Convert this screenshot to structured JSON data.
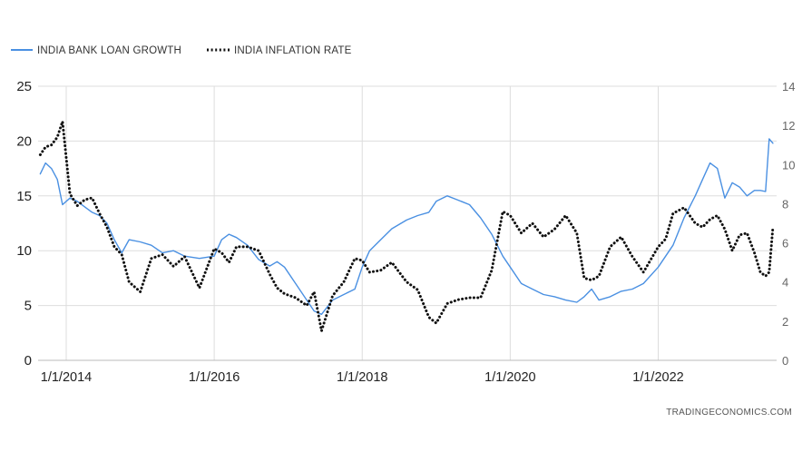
{
  "colors": {
    "loan_growth": "#4a90e2",
    "inflation": "#111111",
    "grid": "#dddddd",
    "baseline": "#bbbbbb"
  },
  "legend": {
    "loan_label": "INDIA BANK LOAN GROWTH",
    "inflation_label": "INDIA INFLATION RATE"
  },
  "credit": "TRADINGECONOMICS.COM",
  "chart_data": {
    "type": "line",
    "title": "",
    "x_tick_labels": [
      "1/1/2014",
      "1/1/2016",
      "1/1/2018",
      "1/1/2020",
      "1/1/2022"
    ],
    "x_ticks": [
      2014.0,
      2016.0,
      2018.0,
      2020.0,
      2022.0
    ],
    "xlim": [
      2013.62,
      2023.6
    ],
    "left_axis": {
      "ylim": [
        0,
        25
      ],
      "ticks": [
        0,
        5,
        10,
        15,
        20,
        25
      ]
    },
    "right_axis": {
      "ylim": [
        0,
        14
      ],
      "ticks": [
        0,
        2,
        4,
        6,
        8,
        10,
        12,
        14
      ]
    },
    "grid": true,
    "legend_position": "top-left",
    "series": [
      {
        "name": "INDIA BANK LOAN GROWTH",
        "axis": "left",
        "style": "solid",
        "color": "#4a90e2",
        "x": [
          2013.65,
          2013.72,
          2013.8,
          2013.88,
          2013.95,
          2014.05,
          2014.15,
          2014.25,
          2014.35,
          2014.45,
          2014.55,
          2014.65,
          2014.75,
          2014.85,
          2015.0,
          2015.15,
          2015.3,
          2015.45,
          2015.6,
          2015.8,
          2016.0,
          2016.1,
          2016.2,
          2016.3,
          2016.45,
          2016.6,
          2016.75,
          2016.85,
          2016.95,
          2017.1,
          2017.25,
          2017.35,
          2017.45,
          2017.6,
          2017.75,
          2017.9,
          2018.0,
          2018.1,
          2018.25,
          2018.4,
          2018.6,
          2018.75,
          2018.9,
          2019.0,
          2019.15,
          2019.3,
          2019.45,
          2019.6,
          2019.75,
          2019.9,
          2020.0,
          2020.15,
          2020.3,
          2020.45,
          2020.6,
          2020.75,
          2020.9,
          2021.0,
          2021.1,
          2021.2,
          2021.35,
          2021.5,
          2021.65,
          2021.8,
          2022.0,
          2022.1,
          2022.2,
          2022.35,
          2022.5,
          2022.6,
          2022.7,
          2022.8,
          2022.9,
          2023.0,
          2023.1,
          2023.2,
          2023.3,
          2023.38,
          2023.45,
          2023.5,
          2023.55
        ],
        "y": [
          17,
          18,
          17.5,
          16.5,
          14.2,
          14.8,
          14.5,
          14,
          13.5,
          13.2,
          12.5,
          11,
          9.8,
          11,
          10.8,
          10.5,
          9.8,
          10,
          9.5,
          9.3,
          9.5,
          11,
          11.5,
          11.2,
          10.5,
          9.2,
          8.6,
          9,
          8.5,
          7,
          5.5,
          4.5,
          4.2,
          5.5,
          6,
          6.5,
          8.5,
          10,
          11,
          12,
          12.8,
          13.2,
          13.5,
          14.5,
          15,
          14.6,
          14.2,
          13,
          11.5,
          9.5,
          8.5,
          7,
          6.5,
          6,
          5.8,
          5.5,
          5.3,
          5.8,
          6.5,
          5.5,
          5.8,
          6.3,
          6.5,
          7,
          8.5,
          9.5,
          10.5,
          13,
          15,
          16.5,
          18,
          17.5,
          14.8,
          16.2,
          15.8,
          15,
          15.5,
          15.5,
          15.4,
          20.2,
          19.8
        ]
      },
      {
        "name": "INDIA INFLATION RATE",
        "axis": "right",
        "style": "dotted",
        "color": "#111111",
        "x": [
          2013.65,
          2013.72,
          2013.8,
          2013.88,
          2013.95,
          2014.05,
          2014.15,
          2014.25,
          2014.35,
          2014.45,
          2014.55,
          2014.65,
          2014.75,
          2014.85,
          2015.0,
          2015.15,
          2015.3,
          2015.45,
          2015.6,
          2015.8,
          2016.0,
          2016.1,
          2016.2,
          2016.3,
          2016.45,
          2016.6,
          2016.75,
          2016.85,
          2016.95,
          2017.1,
          2017.25,
          2017.35,
          2017.45,
          2017.6,
          2017.75,
          2017.9,
          2018.0,
          2018.1,
          2018.25,
          2018.4,
          2018.6,
          2018.75,
          2018.9,
          2019.0,
          2019.15,
          2019.3,
          2019.45,
          2019.6,
          2019.75,
          2019.9,
          2020.0,
          2020.15,
          2020.3,
          2020.45,
          2020.6,
          2020.75,
          2020.9,
          2021.0,
          2021.1,
          2021.2,
          2021.35,
          2021.5,
          2021.65,
          2021.8,
          2022.0,
          2022.1,
          2022.2,
          2022.35,
          2022.5,
          2022.6,
          2022.7,
          2022.8,
          2022.9,
          2023.0,
          2023.1,
          2023.2,
          2023.3,
          2023.38,
          2023.45,
          2023.5,
          2023.55
        ],
        "y": [
          10.5,
          10.9,
          11,
          11.4,
          12.2,
          8.5,
          7.9,
          8.2,
          8.3,
          7.5,
          6.8,
          5.8,
          5.4,
          4,
          3.5,
          5.2,
          5.4,
          4.8,
          5.3,
          3.7,
          5.7,
          5.5,
          5.0,
          5.8,
          5.8,
          5.6,
          4.4,
          3.7,
          3.4,
          3.2,
          2.8,
          3.5,
          1.5,
          3.3,
          4.0,
          5.2,
          5.1,
          4.5,
          4.6,
          5.0,
          4.0,
          3.6,
          2.2,
          1.9,
          2.9,
          3.1,
          3.2,
          3.2,
          4.6,
          7.6,
          7.4,
          6.5,
          7.0,
          6.3,
          6.7,
          7.4,
          6.5,
          4.2,
          4.1,
          4.3,
          5.8,
          6.3,
          5.3,
          4.5,
          5.8,
          6.2,
          7.5,
          7.8,
          7.0,
          6.8,
          7.2,
          7.4,
          6.7,
          5.6,
          6.4,
          6.5,
          5.5,
          4.5,
          4.3,
          4.5,
          6.8
        ]
      }
    ]
  }
}
